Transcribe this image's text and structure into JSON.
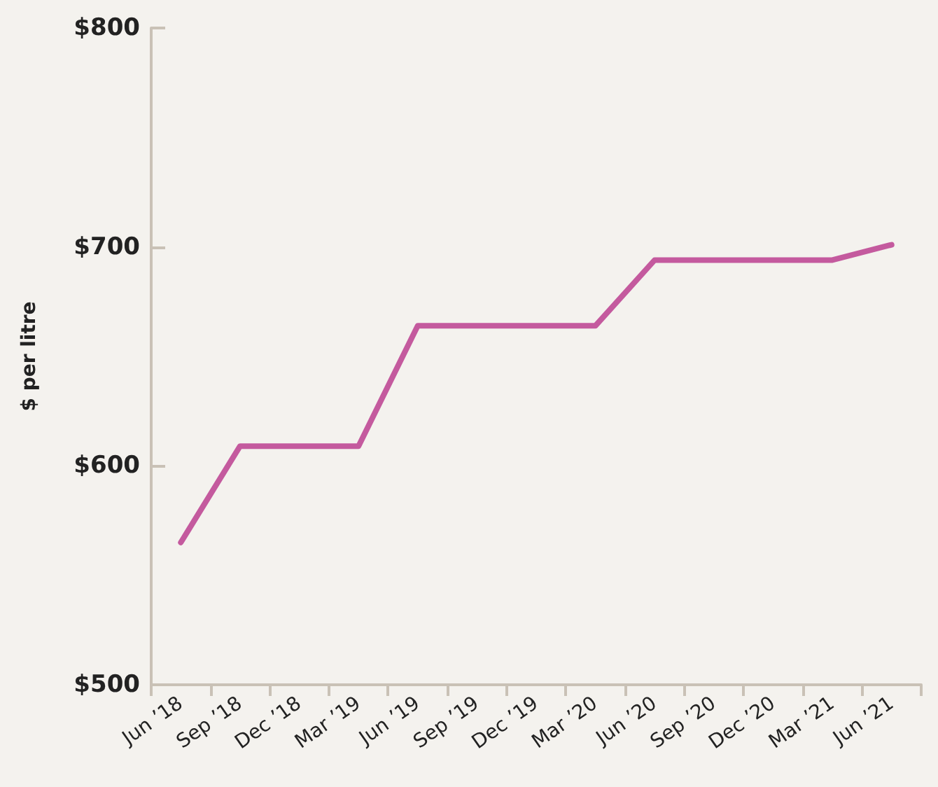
{
  "chart_data": {
    "type": "line",
    "ylabel": "$ per litre",
    "categories": [
      "Jun ’18",
      "Sep ’18",
      "Dec ’18",
      "Mar ’19",
      "Jun ’19",
      "Sep ’19",
      "Dec ’19",
      "Mar ’20",
      "Jun ’20",
      "Sep ’20",
      "Dec ’20",
      "Mar ’21",
      "Jun ’21"
    ],
    "series": [
      {
        "color": "#c45a9e",
        "values": [
          565,
          609,
          609,
          609,
          664,
          664,
          664,
          664,
          694,
          694,
          694,
          694,
          701
        ]
      }
    ],
    "ylim": [
      500,
      800
    ],
    "yticks": [
      {
        "value": 500,
        "label": "$500"
      },
      {
        "value": 600,
        "label": "$600"
      },
      {
        "value": 700,
        "label": "$700"
      },
      {
        "value": 800,
        "label": "$800"
      }
    ],
    "grid": false,
    "marker": "none",
    "line_style": "solid"
  }
}
